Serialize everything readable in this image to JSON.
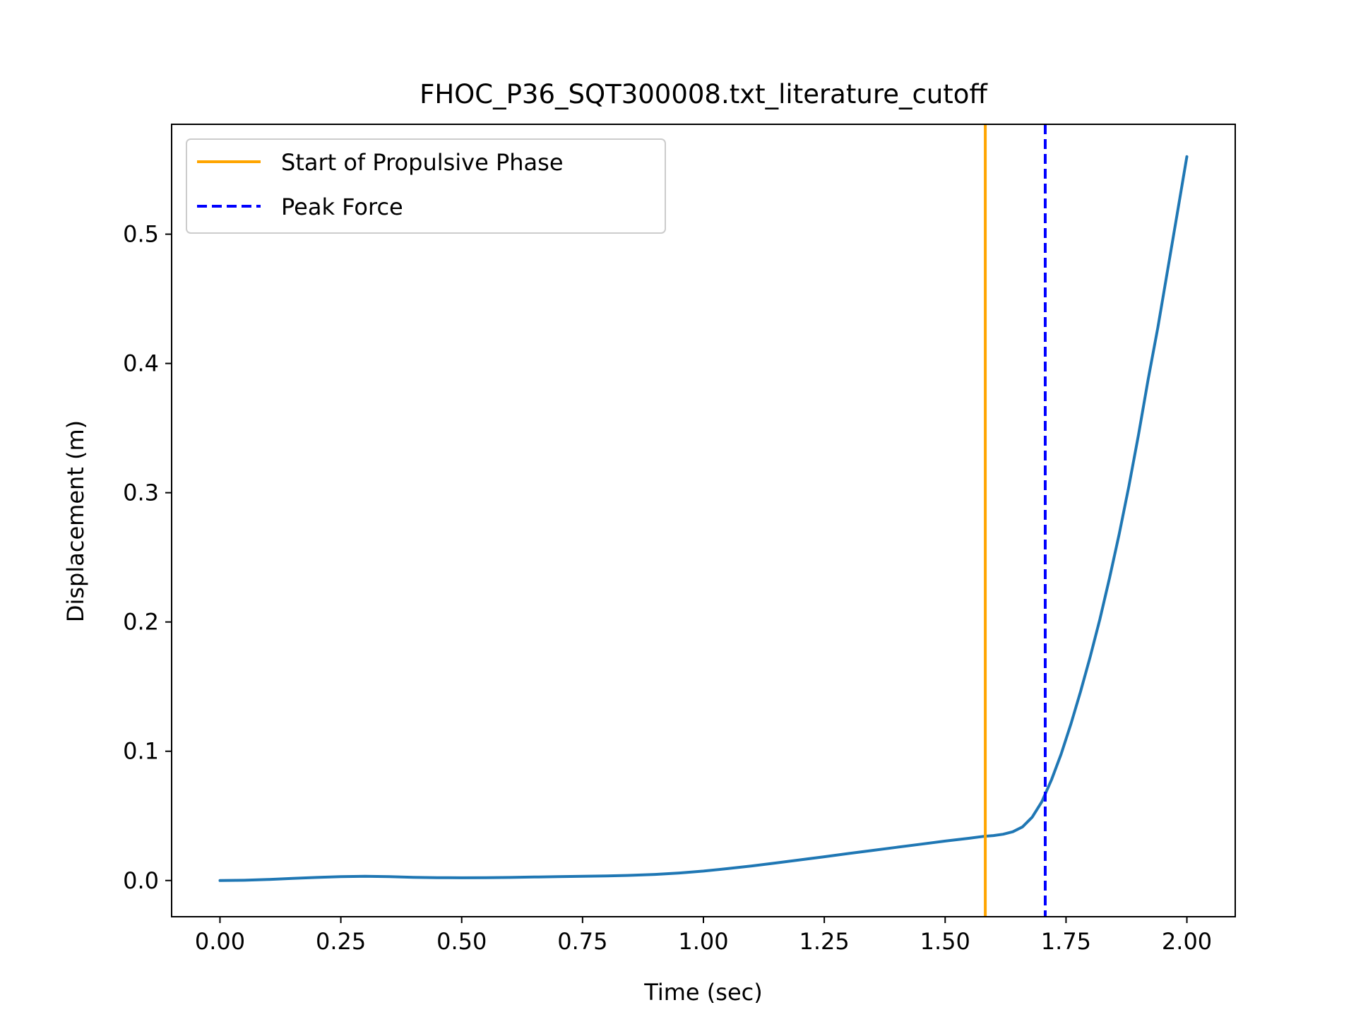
{
  "chart_data": {
    "type": "line",
    "title": "FHOC_P36_SQT300008.txt_literature_cutoff",
    "xlabel": "Time (sec)",
    "ylabel": "Displacement (m)",
    "xlim": [
      -0.1,
      2.1
    ],
    "ylim": [
      -0.028,
      0.585
    ],
    "xticks": [
      0.0,
      0.25,
      0.5,
      0.75,
      1.0,
      1.25,
      1.5,
      1.75,
      2.0
    ],
    "xtick_labels": [
      "0.00",
      "0.25",
      "0.50",
      "0.75",
      "1.00",
      "1.25",
      "1.50",
      "1.75",
      "2.00"
    ],
    "yticks": [
      0.0,
      0.1,
      0.2,
      0.3,
      0.4,
      0.5
    ],
    "ytick_labels": [
      "0.0",
      "0.1",
      "0.2",
      "0.3",
      "0.4",
      "0.5"
    ],
    "grid": false,
    "legend_position": "upper-left",
    "series": [
      {
        "color": "#1f77b4",
        "style": "solid",
        "x": [
          0.0,
          0.05,
          0.1,
          0.15,
          0.2,
          0.25,
          0.3,
          0.35,
          0.4,
          0.45,
          0.5,
          0.55,
          0.6,
          0.65,
          0.7,
          0.75,
          0.8,
          0.85,
          0.9,
          0.95,
          1.0,
          1.05,
          1.1,
          1.15,
          1.2,
          1.25,
          1.3,
          1.35,
          1.4,
          1.45,
          1.5,
          1.55,
          1.58,
          1.6,
          1.62,
          1.64,
          1.66,
          1.68,
          1.7,
          1.72,
          1.74,
          1.76,
          1.78,
          1.8,
          1.82,
          1.84,
          1.86,
          1.88,
          1.9,
          1.92,
          1.94,
          1.96,
          1.98,
          2.0
        ],
        "y": [
          0.0,
          0.0002,
          0.0008,
          0.0016,
          0.0024,
          0.003,
          0.0033,
          0.003,
          0.0025,
          0.0022,
          0.0021,
          0.0022,
          0.0024,
          0.0027,
          0.003,
          0.0033,
          0.0036,
          0.004,
          0.0047,
          0.0058,
          0.0073,
          0.0092,
          0.0113,
          0.0136,
          0.016,
          0.0184,
          0.0209,
          0.0233,
          0.0257,
          0.0281,
          0.0305,
          0.0327,
          0.0342,
          0.0348,
          0.0358,
          0.0377,
          0.0415,
          0.049,
          0.061,
          0.078,
          0.098,
          0.121,
          0.146,
          0.173,
          0.202,
          0.234,
          0.268,
          0.305,
          0.345,
          0.388,
          0.428,
          0.472,
          0.516,
          0.56
        ]
      }
    ],
    "vlines": [
      {
        "name": "Start of Propulsive Phase",
        "x": 1.583,
        "color": "#ffa500",
        "style": "solid"
      },
      {
        "name": "Peak Force",
        "x": 1.707,
        "color": "#0000ff",
        "style": "dashed"
      }
    ]
  }
}
